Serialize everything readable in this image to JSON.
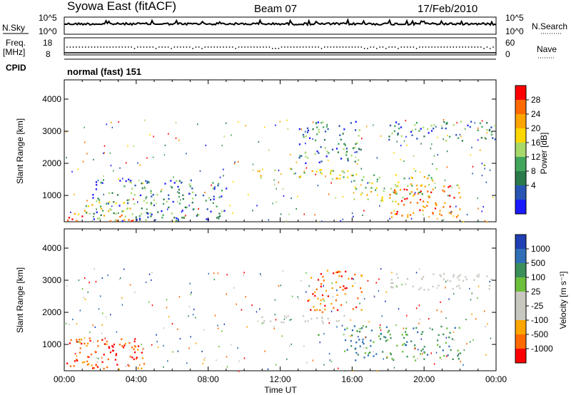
{
  "header": {
    "station": "Syowa East (fitACF)",
    "beam": "Beam 07",
    "date": "17/Feb/2010"
  },
  "top_panels": {
    "nsky_label": "N.Sky",
    "nsearch_label": "N.Search",
    "noise_ticks_left": [
      "10^5",
      "10^0"
    ],
    "noise_ticks_right": [
      "10^5",
      "10^0"
    ],
    "freq_label_1": "Freq.",
    "freq_label_2": "[MHz]",
    "freq_ticks": [
      "18",
      "8"
    ],
    "nave_label": "Nave",
    "nave_ticks": [
      "60",
      "0"
    ],
    "cpid_label": "CPID",
    "cpid_value": "normal (fast) 151"
  },
  "chart_data": [
    {
      "type": "heatmap",
      "panel": "power",
      "xlabel": "",
      "ylabel": "Slant Range [km]",
      "ylim": [
        180,
        4600
      ],
      "yticks": [
        "1000",
        "2000",
        "3000",
        "4000"
      ],
      "colorbar_label": "Power [dB]",
      "colorbar_ticks": [
        "28",
        "24",
        "20",
        "16",
        "12",
        "8",
        "4"
      ],
      "colorbar_colors": [
        "#ff0000",
        "#ff6a00",
        "#ffa500",
        "#ffd700",
        "#a6d96a",
        "#41a65c",
        "#2b7a4b",
        "#2855b3",
        "#1a1aff"
      ],
      "regions": [
        {
          "t0": 0.1,
          "t1": 4.2,
          "r0": 200,
          "r1": 400,
          "level": "high"
        },
        {
          "t0": 0.5,
          "t1": 4.0,
          "r0": 400,
          "r1": 800,
          "level": "mid"
        },
        {
          "t0": 1.5,
          "t1": 9.0,
          "r0": 200,
          "r1": 1500,
          "level": "low"
        },
        {
          "t0": 10.8,
          "t1": 16.0,
          "r0": 1500,
          "r1": 1850,
          "level": "mid"
        },
        {
          "t0": 13.0,
          "t1": 16.5,
          "r0": 2000,
          "r1": 3300,
          "level": "low"
        },
        {
          "t0": 16.0,
          "t1": 20.5,
          "r0": 800,
          "r1": 1700,
          "level": "mid"
        },
        {
          "t0": 18.0,
          "t1": 22.0,
          "r0": 300,
          "r1": 1300,
          "level": "high"
        },
        {
          "t0": 18.0,
          "t1": 24.0,
          "r0": 2700,
          "r1": 3300,
          "level": "low"
        }
      ]
    },
    {
      "type": "heatmap",
      "panel": "velocity",
      "xlabel": "Time UT",
      "ylabel": "Slant Range [km]",
      "ylim": [
        180,
        4600
      ],
      "yticks": [
        "1000",
        "2000",
        "3000",
        "4000"
      ],
      "xticks": [
        "00:00",
        "04:00",
        "08:00",
        "12:00",
        "16:00",
        "20:00",
        "00:00"
      ],
      "colorbar_label": "Velocity [m s⁻¹]",
      "colorbar_ticks": [
        "1000",
        "500",
        "100",
        "25",
        "-25",
        "-100",
        "-500",
        "-1000"
      ],
      "colorbar_colors": [
        "#1f3fb2",
        "#2f6fb8",
        "#3b8f5a",
        "#6cbf3a",
        "#c8c8c0",
        "#c8c8c0",
        "#ffa500",
        "#ff6a00",
        "#ff0000"
      ],
      "regions": [
        {
          "t0": 0.1,
          "t1": 4.5,
          "r0": 200,
          "r1": 1200,
          "level": "away"
        },
        {
          "t0": 2.0,
          "t1": 4.0,
          "r0": 500,
          "r1": 1000,
          "level": "strong-away"
        },
        {
          "t0": 10.8,
          "t1": 16.0,
          "r0": 1650,
          "r1": 1900,
          "level": "zero"
        },
        {
          "t0": 13.5,
          "t1": 16.5,
          "r0": 2000,
          "r1": 3300,
          "level": "away"
        },
        {
          "t0": 15.5,
          "t1": 22.0,
          "r0": 500,
          "r1": 1600,
          "level": "toward"
        },
        {
          "t0": 18.0,
          "t1": 24.0,
          "r0": 2700,
          "r1": 3200,
          "level": "zero"
        }
      ]
    }
  ]
}
